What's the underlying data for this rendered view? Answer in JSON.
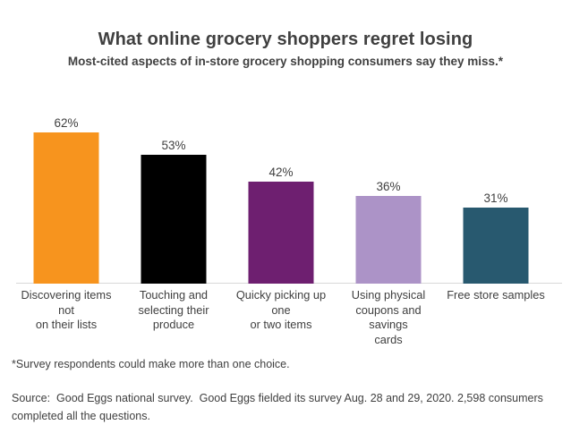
{
  "header": {
    "title": "What online grocery shoppers regret losing",
    "subtitle": "Most-cited aspects of in-store grocery shopping consumers say they miss.*"
  },
  "chart_data": {
    "type": "bar",
    "title": "What online grocery shoppers regret losing",
    "subtitle": "Most-cited aspects of in-store grocery shopping consumers say they miss.*",
    "categories": [
      "Discovering items not on their lists",
      "Touching and selecting their produce",
      "Quicky picking up one or two items",
      "Using physical coupons and savings cards",
      "Free store samples"
    ],
    "label_lines": [
      [
        "Discovering items not",
        "on their lists"
      ],
      [
        "Touching and",
        "selecting their",
        "produce"
      ],
      [
        "Quicky picking up one",
        "or two items"
      ],
      [
        "Using physical",
        "coupons and savings",
        "cards"
      ],
      [
        "Free store samples"
      ]
    ],
    "values": [
      62,
      53,
      42,
      36,
      31
    ],
    "value_labels": [
      "62%",
      "53%",
      "42%",
      "36%",
      "31%"
    ],
    "bar_colors": [
      "#F7941E",
      "#000000",
      "#6E1F70",
      "#AC93C7",
      "#28596F"
    ],
    "unit": "%",
    "xlabel": "",
    "ylabel": "",
    "ylim": [
      0,
      68
    ],
    "grid": false,
    "legend": false,
    "baseline_axis": true
  },
  "footnotes": {
    "note": "*Survey respondents could make more than one choice.",
    "source": "Source:  Good Eggs national survey.  Good Eggs fielded its survey Aug. 28 and 29, 2020. 2,598 consumers completed all the questions."
  },
  "colors": {
    "title": "#F7941E",
    "text": "#404040",
    "axis_line": "#D9D9D9",
    "background": "#FFFFFF"
  }
}
